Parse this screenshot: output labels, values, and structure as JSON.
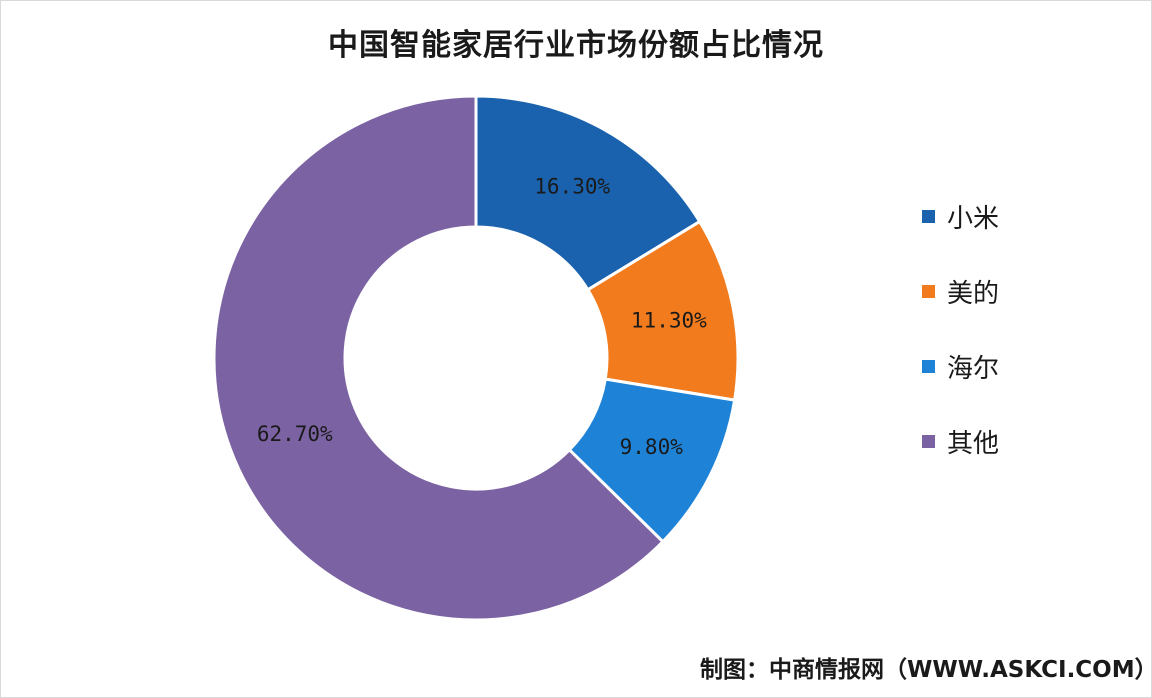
{
  "chart_data": {
    "type": "pie",
    "donut": true,
    "title": "中国智能家居行业市场份额占比情况",
    "categories": [
      "小米",
      "美的",
      "海尔",
      "其他"
    ],
    "values": [
      16.3,
      11.3,
      9.8,
      62.7
    ],
    "data_labels": [
      "16.30%",
      "11.30%",
      "9.80%",
      "62.70%"
    ],
    "colors": [
      "#1a62ad",
      "#f27b1d",
      "#1e82d6",
      "#7b63a3"
    ],
    "legend_position": "right"
  },
  "footer": {
    "source": "制图：中商情报网（WWW.ASKCI.COM）"
  }
}
